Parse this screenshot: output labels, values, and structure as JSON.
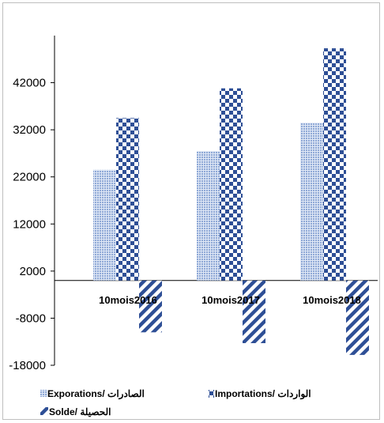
{
  "chart_data": {
    "type": "bar",
    "categories": [
      "10mois2016",
      "10mois2017",
      "10mois2018"
    ],
    "series": [
      {
        "name": "Exporations/ الصادرات",
        "values": [
          23500,
          27500,
          33500
        ],
        "color": "#a9bde0",
        "pattern": "dots"
      },
      {
        "name": "Importations/ الواردات",
        "values": [
          34500,
          40800,
          49300
        ],
        "color": "#2e4f96",
        "pattern": "checker"
      },
      {
        "name": "Solde/ الحصيلة",
        "values": [
          -11000,
          -13300,
          -15800
        ],
        "color": "#2e4f96",
        "pattern": "diagonal"
      }
    ],
    "yticks": [
      -18000,
      -8000,
      2000,
      12000,
      22000,
      32000,
      42000
    ],
    "ylim": [
      -18000,
      52000
    ],
    "grid": false,
    "legend_position": "bottom",
    "title": "",
    "xlabel": "",
    "ylabel": ""
  },
  "legend": {
    "exports_label": "Exporations/ الصادرات",
    "imports_label": "Importations/ الواردات",
    "balance_label": "Solde/ الحصيلة"
  }
}
